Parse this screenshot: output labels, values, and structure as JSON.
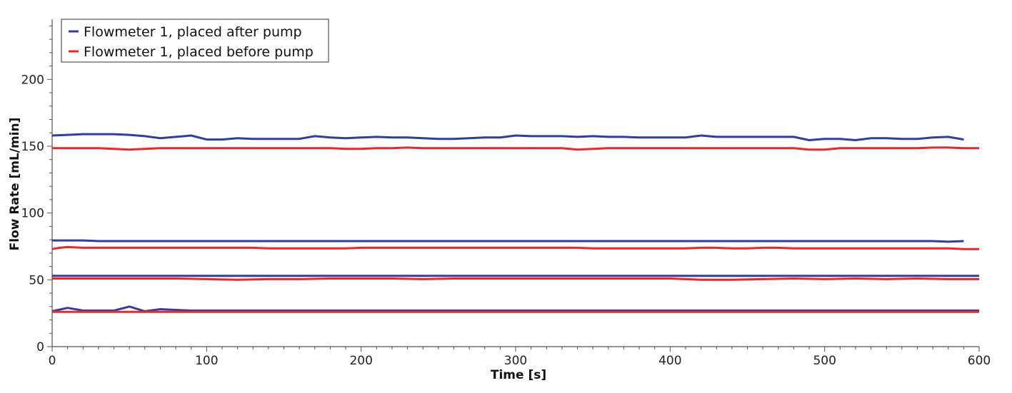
{
  "chart_data": {
    "type": "line",
    "title": "",
    "xlabel": "Time [s]",
    "ylabel": "Flow Rate [mL/min]",
    "xlim": [
      0,
      600
    ],
    "ylim": [
      0,
      245
    ],
    "x_ticks": [
      0,
      100,
      200,
      300,
      400,
      500,
      600
    ],
    "y_ticks": [
      0,
      50,
      100,
      150,
      200
    ],
    "grid": false,
    "legend_position": "top-left",
    "legend": [
      {
        "label": "Flowmeter 1, placed after pump",
        "color": "#2e3f9e"
      },
      {
        "label": "Flowmeter 1, placed before pump",
        "color": "#e8282b"
      }
    ],
    "series": [
      {
        "group": "after",
        "color": "#2e3f9e",
        "x": [
          0,
          10,
          20,
          30,
          40,
          50,
          60,
          70,
          80,
          90,
          100,
          110,
          120,
          130,
          140,
          150,
          160,
          170,
          180,
          190,
          200,
          210,
          220,
          230,
          240,
          250,
          260,
          270,
          280,
          290,
          300,
          310,
          320,
          330,
          340,
          350,
          360,
          370,
          380,
          390,
          400,
          410,
          420,
          430,
          440,
          450,
          460,
          470,
          480,
          490,
          500,
          510,
          520,
          530,
          540,
          550,
          560,
          570,
          580,
          590
        ],
        "y": [
          158,
          158.5,
          159,
          159,
          159,
          158.5,
          157.5,
          156,
          157,
          158,
          155,
          155,
          156,
          155.5,
          155.5,
          155.5,
          155.5,
          157.5,
          156.5,
          156,
          156.5,
          157,
          156.5,
          156.5,
          156,
          155.5,
          155.5,
          156,
          156.5,
          156.5,
          158,
          157.5,
          157.5,
          157.5,
          157,
          157.5,
          157,
          157,
          156.5,
          156.5,
          156.5,
          156.5,
          158,
          157,
          157,
          157,
          157,
          157,
          157,
          154.5,
          155.5,
          155.5,
          154.5,
          156,
          156,
          155.5,
          155.5,
          156.5,
          157,
          155
        ]
      },
      {
        "group": "before",
        "color": "#e8282b",
        "x": [
          0,
          10,
          20,
          30,
          40,
          50,
          60,
          70,
          80,
          90,
          100,
          110,
          120,
          130,
          140,
          150,
          160,
          170,
          180,
          190,
          200,
          210,
          220,
          230,
          240,
          250,
          260,
          270,
          280,
          290,
          300,
          310,
          320,
          330,
          340,
          350,
          360,
          370,
          380,
          390,
          400,
          410,
          420,
          430,
          440,
          450,
          460,
          470,
          480,
          490,
          500,
          510,
          520,
          530,
          540,
          550,
          560,
          570,
          580,
          590,
          600
        ],
        "y": [
          148.5,
          148.5,
          148.5,
          148.5,
          148,
          147.5,
          148,
          148.5,
          148.5,
          148.5,
          148.5,
          148.5,
          148.5,
          148.5,
          148.5,
          148.5,
          148.5,
          148.5,
          148.5,
          148,
          148,
          148.5,
          148.5,
          149,
          148.5,
          148.5,
          148.5,
          148.5,
          148.5,
          148.5,
          148.5,
          148.5,
          148.5,
          148.5,
          147.5,
          148,
          148.5,
          148.5,
          148.5,
          148.5,
          148.5,
          148.5,
          148.5,
          148.5,
          148.5,
          148.5,
          148.5,
          148.5,
          148.5,
          147.5,
          147.5,
          148.5,
          148.5,
          148.5,
          148.5,
          148.5,
          148.5,
          149,
          149,
          148.5,
          148.5
        ]
      },
      {
        "group": "after",
        "color": "#2e3f9e",
        "x": [
          0,
          10,
          20,
          30,
          40,
          50,
          60,
          70,
          80,
          90,
          100,
          110,
          120,
          130,
          140,
          150,
          160,
          170,
          180,
          190,
          200,
          210,
          220,
          230,
          240,
          250,
          260,
          270,
          280,
          290,
          300,
          310,
          320,
          330,
          340,
          350,
          360,
          370,
          380,
          390,
          400,
          410,
          420,
          430,
          440,
          450,
          460,
          470,
          480,
          490,
          500,
          510,
          520,
          530,
          540,
          550,
          560,
          570,
          580,
          590
        ],
        "y": [
          79.5,
          79.5,
          79.5,
          79,
          79,
          79,
          79,
          79,
          79,
          79,
          79,
          79,
          79,
          79,
          79,
          79,
          79,
          79,
          79,
          79,
          79,
          79,
          79,
          79,
          79,
          79,
          79,
          79,
          79,
          79,
          79,
          79,
          79,
          79,
          79,
          79,
          79,
          79,
          79,
          79,
          79,
          79,
          79,
          79,
          79,
          79,
          79,
          79,
          79,
          79,
          79,
          79,
          79,
          79,
          79,
          79,
          79,
          79,
          78.5,
          79
        ]
      },
      {
        "group": "before",
        "color": "#e8282b",
        "x": [
          0,
          5,
          10,
          20,
          30,
          40,
          50,
          60,
          70,
          80,
          90,
          100,
          110,
          120,
          130,
          140,
          150,
          160,
          170,
          180,
          190,
          200,
          210,
          220,
          230,
          240,
          250,
          260,
          270,
          280,
          290,
          300,
          310,
          320,
          330,
          340,
          350,
          360,
          370,
          380,
          390,
          400,
          410,
          420,
          430,
          440,
          450,
          460,
          470,
          480,
          490,
          500,
          510,
          520,
          530,
          540,
          550,
          560,
          570,
          580,
          590,
          600
        ],
        "y": [
          73,
          74,
          74.5,
          74,
          74,
          74,
          74,
          74,
          74,
          74,
          74,
          74,
          74,
          74,
          74,
          73.5,
          73.5,
          73.5,
          73.5,
          73.5,
          73.5,
          74,
          74,
          74,
          74,
          74,
          74,
          74,
          74,
          74,
          74,
          74,
          74,
          74,
          74,
          74,
          73.5,
          73.5,
          73.5,
          73.5,
          73.5,
          73.5,
          73.5,
          74,
          74,
          73.5,
          73.5,
          74,
          74,
          73.5,
          73.5,
          73.5,
          73.5,
          73.5,
          73.5,
          73.5,
          73.5,
          73.5,
          73.5,
          73.5,
          73,
          73
        ]
      },
      {
        "group": "after",
        "color": "#2e3f9e",
        "x": [
          0,
          600
        ],
        "y": [
          53,
          53
        ]
      },
      {
        "group": "before",
        "color": "#e8282b",
        "x": [
          0,
          20,
          40,
          60,
          80,
          100,
          120,
          140,
          160,
          180,
          200,
          220,
          240,
          260,
          280,
          300,
          320,
          340,
          360,
          380,
          400,
          420,
          440,
          460,
          480,
          500,
          520,
          540,
          560,
          580,
          600
        ],
        "y": [
          51,
          51,
          51,
          51,
          51,
          50.5,
          50,
          50.5,
          50.5,
          51,
          51,
          51,
          50.5,
          51,
          51,
          51,
          51,
          51,
          51,
          51,
          51,
          50,
          50,
          50.5,
          51,
          50.5,
          51,
          50.5,
          51,
          50.5,
          50.5
        ]
      },
      {
        "group": "after",
        "color": "#2e3f9e",
        "x": [
          0,
          10,
          20,
          30,
          40,
          50,
          60,
          70,
          80,
          90,
          100,
          600
        ],
        "y": [
          26.5,
          29,
          27,
          27,
          27,
          30,
          26.5,
          28,
          27.5,
          27,
          27,
          27
        ]
      },
      {
        "group": "before",
        "color": "#e8282b",
        "x": [
          0,
          600
        ],
        "y": [
          26,
          26
        ]
      }
    ]
  }
}
